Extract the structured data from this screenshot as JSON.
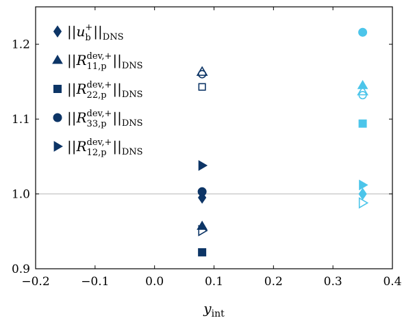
{
  "chart_data": {
    "type": "scatter",
    "title": "",
    "xlabel": "y_int",
    "xlabel_main": "y",
    "xlabel_sub": "int",
    "ylabel": "",
    "xlim": [
      -0.2,
      0.4
    ],
    "ylim": [
      0.9,
      1.25
    ],
    "xticks": [
      "−0.2",
      "−0.1",
      "0.0",
      "0.1",
      "0.2",
      "0.3",
      "0.4"
    ],
    "xtick_values": [
      -0.2,
      -0.1,
      0.0,
      0.1,
      0.2,
      0.3,
      0.4
    ],
    "yticks": [
      "0.9",
      "1.0",
      "1.1",
      "1.2"
    ],
    "ytick_values": [
      0.9,
      1.0,
      1.1,
      1.2
    ],
    "reference_line_y": 1.0,
    "grid": false,
    "legend_position": "top-left",
    "colors": {
      "dark": "#0d3566",
      "light": "#4cc5ea",
      "refline": "#bfbfbf"
    },
    "series": [
      {
        "name": "||u_b^+||_DNS",
        "legend": {
          "pre": "||u",
          "sup": "+",
          "sub": "b",
          "post": "||",
          "post_sub": "DNS"
        },
        "marker": "diamond",
        "points": [
          {
            "x": 0.08,
            "y": 0.995,
            "filled": true,
            "color": "dark"
          },
          {
            "x": 0.35,
            "y": 1.0,
            "filled": true,
            "color": "light"
          }
        ]
      },
      {
        "name": "||R_11,p^dev,+||_DNS",
        "legend": {
          "pre": "||R",
          "sup": "dev,+",
          "sub": "11,p",
          "post": "||",
          "post_sub": "DNS"
        },
        "marker": "triangle-up",
        "points": [
          {
            "x": 0.08,
            "y": 0.957,
            "filled": true,
            "color": "dark"
          },
          {
            "x": 0.08,
            "y": 1.163,
            "filled": false,
            "color": "dark"
          },
          {
            "x": 0.35,
            "y": 1.145,
            "filled": true,
            "color": "light"
          },
          {
            "x": 0.35,
            "y": 1.137,
            "filled": false,
            "color": "light"
          }
        ]
      },
      {
        "name": "||R_22,p^dev,+||_DNS",
        "legend": {
          "pre": "||R",
          "sup": "dev,+",
          "sub": "22,p",
          "post": "||",
          "post_sub": "DNS"
        },
        "marker": "square",
        "points": [
          {
            "x": 0.08,
            "y": 0.922,
            "filled": true,
            "color": "dark"
          },
          {
            "x": 0.08,
            "y": 1.143,
            "filled": false,
            "color": "dark"
          },
          {
            "x": 0.35,
            "y": 1.094,
            "filled": true,
            "color": "light"
          }
        ]
      },
      {
        "name": "||R_33,p^dev,+||_DNS",
        "legend": {
          "pre": "||R",
          "sup": "dev,+",
          "sub": "33,p",
          "post": "||",
          "post_sub": "DNS"
        },
        "marker": "circle",
        "points": [
          {
            "x": 0.08,
            "y": 1.003,
            "filled": true,
            "color": "dark"
          },
          {
            "x": 0.08,
            "y": 1.16,
            "filled": false,
            "color": "dark"
          },
          {
            "x": 0.35,
            "y": 1.216,
            "filled": true,
            "color": "light"
          },
          {
            "x": 0.35,
            "y": 1.132,
            "filled": false,
            "color": "light"
          }
        ]
      },
      {
        "name": "||R_12,p^dev,+||_DNS",
        "legend": {
          "pre": "||R",
          "sup": "dev,+",
          "sub": "12,p",
          "post": "||",
          "post_sub": "DNS"
        },
        "marker": "triangle-right",
        "points": [
          {
            "x": 0.08,
            "y": 1.038,
            "filled": true,
            "color": "dark"
          },
          {
            "x": 0.08,
            "y": 0.951,
            "filled": false,
            "color": "dark"
          },
          {
            "x": 0.35,
            "y": 1.012,
            "filled": true,
            "color": "light"
          },
          {
            "x": 0.35,
            "y": 0.988,
            "filled": false,
            "color": "light"
          }
        ]
      }
    ]
  }
}
